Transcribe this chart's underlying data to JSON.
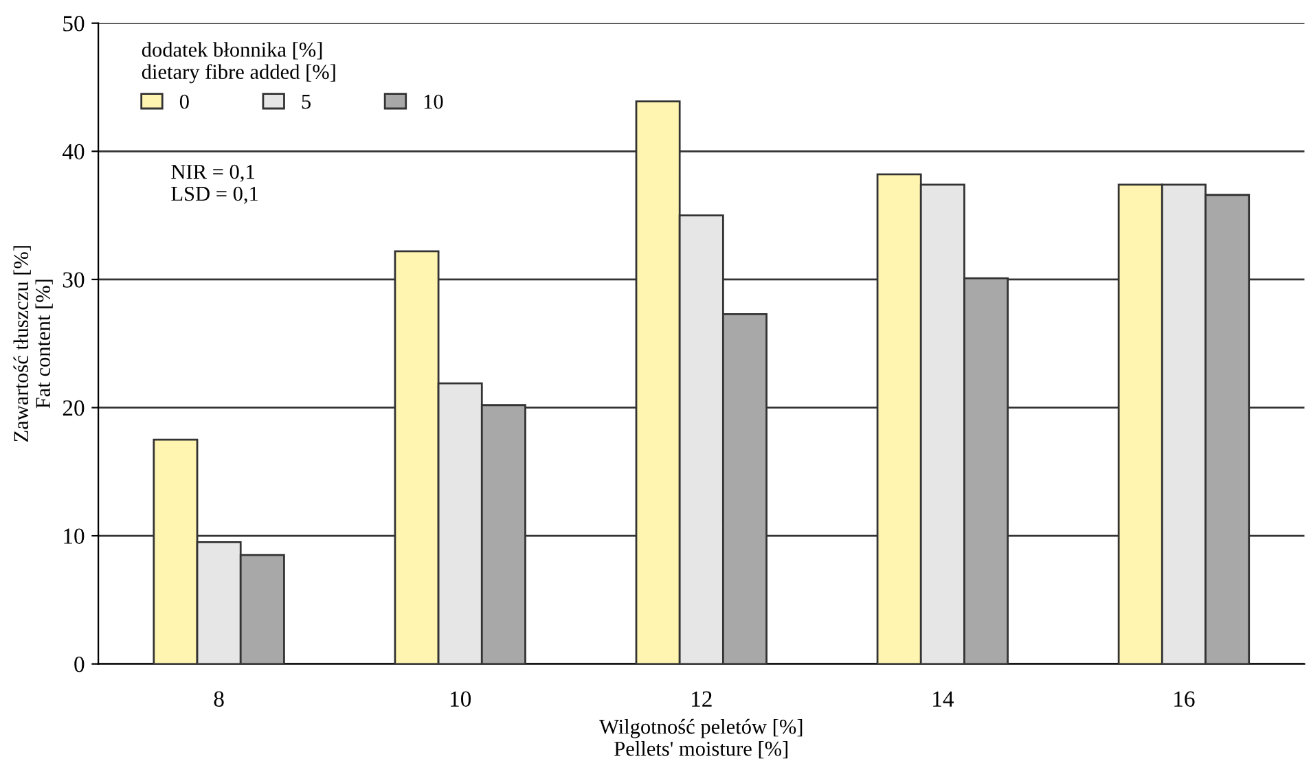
{
  "chart_data": {
    "type": "bar",
    "categories": [
      "8",
      "10",
      "12",
      "14",
      "16"
    ],
    "series": [
      {
        "name": "0",
        "color": "#fff5b0",
        "values": [
          17.5,
          32.2,
          43.9,
          38.2,
          37.4
        ]
      },
      {
        "name": "5",
        "color": "#e6e6e6",
        "values": [
          9.5,
          21.9,
          35.0,
          37.4,
          37.4
        ]
      },
      {
        "name": "10",
        "color": "#a8a8a8",
        "values": [
          8.5,
          20.2,
          27.3,
          30.1,
          36.6
        ]
      }
    ],
    "ylim": [
      0,
      50
    ],
    "yticks": [
      0,
      10,
      20,
      30,
      40,
      50
    ],
    "grid": "y",
    "legend": "top left",
    "legend_title": "dodatek błonnika [%]\ndietary fibre added [%]",
    "xlabel": "Wilgotność peletów [%]\nPellets' moisture [%]",
    "ylabel": "Zawartość tłuszczu [%]\nFat content [%]",
    "annotations": [
      "NIR = 0,1\nLSD = 0,1"
    ]
  }
}
